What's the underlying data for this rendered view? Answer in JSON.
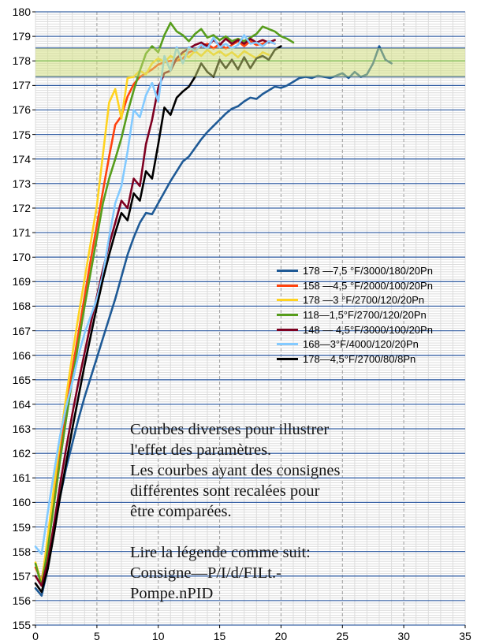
{
  "chart_data": {
    "type": "line",
    "title": "",
    "xlabel": "",
    "ylabel": "",
    "xlim": [
      0,
      35
    ],
    "ylim": [
      155,
      180
    ],
    "x_ticks": [
      0,
      5,
      10,
      15,
      20,
      25,
      30,
      35
    ],
    "y_ticks": [
      155,
      156,
      157,
      158,
      159,
      160,
      161,
      162,
      163,
      164,
      165,
      166,
      167,
      168,
      169,
      170,
      171,
      172,
      173,
      174,
      175,
      176,
      177,
      178,
      179,
      180
    ],
    "grid": {
      "major_horizontal": true,
      "minor_horizontal_step": 0.1,
      "minor_vertical_step": 1,
      "major_vertical_step": 5
    },
    "legend_position": "middle-right",
    "band": {
      "from": 177.35,
      "to": 178.52,
      "center": 178
    },
    "colors": {
      "background": "#ffffff",
      "grid_major": "#3A63A5",
      "grid_minor": "#DCDCDC",
      "grid_major_vertical": "#9C9C9C",
      "band_fill": "rgba(209,223,122,0.5)",
      "band_edge": "#3A63A5",
      "band_center": "#43A047",
      "tick": "#000000"
    },
    "series": [
      {
        "name": "178 —7,5 °F/3000/180/20Pn",
        "color": "#1F5A96",
        "x_start": 0,
        "x_step": 0.5,
        "values": [
          156.5,
          156.2,
          157.3,
          158.8,
          160.2,
          161.4,
          162.4,
          163.4,
          164.3,
          165.1,
          165.9,
          166.7,
          167.5,
          168.3,
          169.2,
          170.1,
          170.8,
          171.4,
          171.8,
          171.75,
          172.2,
          172.65,
          173.1,
          173.5,
          173.9,
          174.1,
          174.45,
          174.8,
          175.1,
          175.35,
          175.6,
          175.85,
          176.05,
          176.15,
          176.35,
          176.5,
          176.45,
          176.65,
          176.8,
          176.95,
          176.9,
          177.0,
          177.15,
          177.3,
          177.35,
          177.3,
          177.4,
          177.35,
          177.3,
          177.4,
          177.5,
          177.3,
          177.55,
          177.35,
          177.45,
          177.9,
          178.6,
          178.05,
          177.9
        ]
      },
      {
        "name": "158 —4,5 °F/2000/100/20Pn",
        "color": "#FF420E",
        "x_start": 0,
        "x_step": 0.5,
        "values": [
          157.35,
          156.8,
          158.4,
          160.3,
          162.1,
          163.8,
          165.4,
          166.9,
          168.4,
          169.9,
          171.3,
          172.7,
          174.1,
          175.4,
          175.75,
          176.55,
          177.05,
          177.35,
          177.5,
          177.65,
          177.85,
          177.95,
          178.0,
          178.0,
          178.1,
          178.35,
          178.45,
          178.6,
          178.7,
          178.5,
          178.7,
          178.5,
          178.65,
          178.8,
          178.6,
          178.8,
          178.65,
          178.7,
          178.8,
          178.7
        ]
      },
      {
        "name": "178 —3 °F/2700/120/20Pn",
        "color": "#FFD320",
        "x_start": 0,
        "x_step": 0.5,
        "values": [
          157.55,
          156.7,
          158.6,
          160.6,
          162.5,
          164.3,
          166.0,
          167.6,
          169.1,
          170.6,
          172.1,
          174.2,
          176.3,
          176.85,
          175.65,
          177.3,
          177.35,
          177.6,
          177.45,
          177.9,
          178.1,
          177.95,
          178.2,
          178.05,
          178.3,
          178.15,
          178.4,
          178.2,
          178.45,
          178.25,
          178.4,
          178.2,
          178.35,
          178.15,
          178.4,
          178.25,
          178.1,
          178.35,
          178.25
        ]
      },
      {
        "name": "118—1,5°F/2700/120/20Pn",
        "color": "#579D1C",
        "x_start": 0,
        "x_step": 0.5,
        "values": [
          157.5,
          156.6,
          158.1,
          159.9,
          161.7,
          163.4,
          165.0,
          166.5,
          168.0,
          169.4,
          170.8,
          172.2,
          173.2,
          174.0,
          174.85,
          175.9,
          176.8,
          177.6,
          178.3,
          178.6,
          178.35,
          179.05,
          179.55,
          179.2,
          179.05,
          178.8,
          179.1,
          179.3,
          178.95,
          179.05,
          178.85,
          179.0,
          178.8,
          178.9,
          178.8,
          178.95,
          179.1,
          179.4,
          179.3,
          179.2,
          179.0,
          178.9,
          178.75
        ]
      },
      {
        "name": "148 — 4,5°F/3000/100/20Pn",
        "color": "#7E0021",
        "x_start": 0,
        "x_step": 0.5,
        "values": [
          157.0,
          156.6,
          157.6,
          159.1,
          160.7,
          162.2,
          163.6,
          164.9,
          166.1,
          167.3,
          168.4,
          169.5,
          170.5,
          171.4,
          172.3,
          172.0,
          173.2,
          172.9,
          174.6,
          175.6,
          176.9,
          177.5,
          177.6,
          178.1,
          178.35,
          178.5,
          178.65,
          178.75,
          178.6,
          178.85,
          178.65,
          178.9,
          178.7,
          178.85,
          178.7,
          178.9,
          178.75,
          178.85,
          178.75,
          178.85
        ]
      },
      {
        "name": "168—3°F/4000/120/20Pn",
        "color": "#83CAFF",
        "x_start": 0,
        "x_step": 0.5,
        "values": [
          158.2,
          157.9,
          159.6,
          161.2,
          162.7,
          163.9,
          164.9,
          166.0,
          166.9,
          167.6,
          168.3,
          169.3,
          170.8,
          172.2,
          172.9,
          174.3,
          176.0,
          175.7,
          176.6,
          177.1,
          176.35,
          178.2,
          177.6,
          178.55,
          177.9,
          178.55,
          178.4,
          178.65,
          178.5,
          178.95,
          178.55,
          178.7,
          178.5,
          178.65,
          179.05,
          178.7,
          178.75,
          178.6,
          178.8,
          178.7
        ]
      },
      {
        "name": "178—4,5°F/2700/80/8Pn",
        "color": "#000000",
        "x_start": 0,
        "x_step": 0.5,
        "values": [
          156.7,
          156.35,
          157.3,
          158.7,
          160.2,
          161.6,
          163.0,
          164.3,
          165.6,
          166.8,
          168.0,
          169.1,
          170.1,
          171.0,
          171.8,
          171.5,
          172.6,
          172.3,
          173.5,
          173.2,
          174.6,
          176.1,
          175.8,
          176.5,
          176.75,
          176.95,
          177.35,
          177.9,
          177.55,
          177.35,
          178.05,
          177.7,
          178.05,
          177.65,
          178.15,
          177.7,
          178.1,
          178.2,
          178.05,
          178.45,
          178.6
        ]
      }
    ]
  },
  "annotation": {
    "text": "Courbes diverses pour illustrer\nl'effet des paramètres.\nLes courbes ayant des consignes\ndifférentes sont recalées pour\nêtre comparées.\n\nLire la légende comme suit:\nConsigne—P/I/d/FILt.-\nPompe.nPID"
  }
}
